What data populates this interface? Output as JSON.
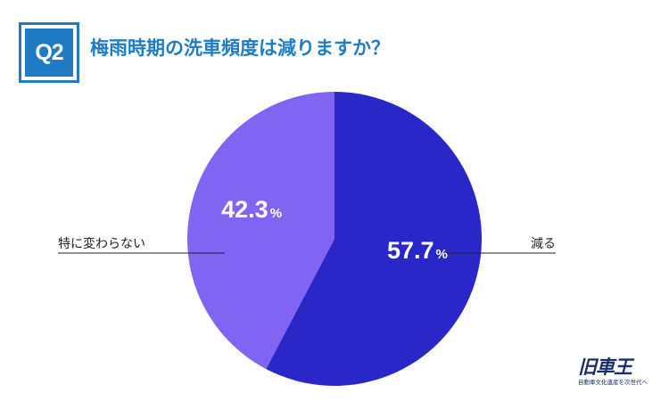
{
  "question": {
    "badge": "Q2",
    "text": "梅雨時期の洗車頻度は減りますか？"
  },
  "chart_data": {
    "type": "pie",
    "title": "梅雨時期の洗車頻度は減りますか？",
    "slices": [
      {
        "label": "減る",
        "value": 57.7,
        "value_label": "57.7",
        "unit": "%",
        "color": "#2a27c8",
        "label_side": "right"
      },
      {
        "label": "特に変わらない",
        "value": 42.3,
        "value_label": "42.3",
        "unit": "%",
        "color": "#8264f2",
        "label_side": "left"
      }
    ],
    "start_angle": "12 o'clock",
    "direction": "clockwise",
    "legend": "none"
  },
  "logo": {
    "main": "旧車王",
    "sub": "自動車文化遺産を次世代へ"
  }
}
